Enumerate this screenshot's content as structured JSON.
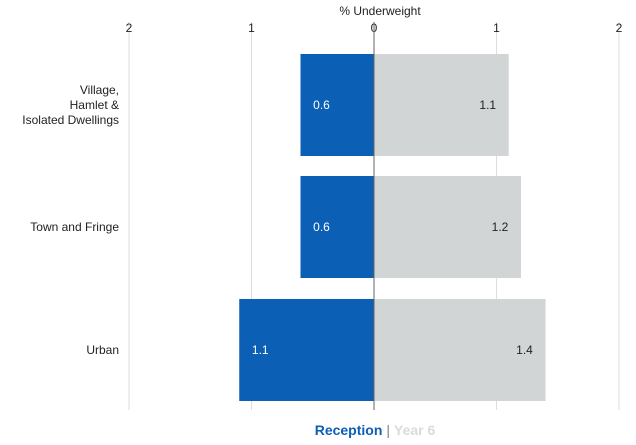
{
  "chart_data": {
    "type": "bar",
    "orientation": "horizontal",
    "layout": "back-to-back",
    "title": "",
    "xlabel": "% Underweight",
    "ylabel": "",
    "xlim": [
      -2,
      2
    ],
    "tick_labels": [
      "2",
      "1",
      "0",
      "1",
      "2"
    ],
    "tick_values": [
      -2,
      -1,
      0,
      1,
      2
    ],
    "categories": [
      [
        "Village,",
        "Hamlet &",
        "Isolated Dwellings"
      ],
      [
        "Town and Fringe"
      ],
      [
        "Urban"
      ]
    ],
    "series": [
      {
        "name": "Reception",
        "side": "left",
        "color": "#0b5fb5",
        "label_color": "#ffffff",
        "values": [
          0.6,
          0.6,
          1.1
        ],
        "labels": [
          "0.6",
          "0.6",
          "1.1"
        ]
      },
      {
        "name": "Year 6",
        "side": "right",
        "color": "#d1d5d5",
        "label_color": "#222222",
        "values": [
          1.1,
          1.2,
          1.4
        ],
        "labels": [
          "1.1",
          "1.2",
          "1.4"
        ]
      }
    ],
    "grid": true,
    "legend_position": "bottom"
  },
  "legend": {
    "separator": "|",
    "items": [
      {
        "label": "Reception",
        "color": "#0b5fb5"
      },
      {
        "label": "Year 6",
        "color": "#d9dcdc"
      }
    ]
  }
}
